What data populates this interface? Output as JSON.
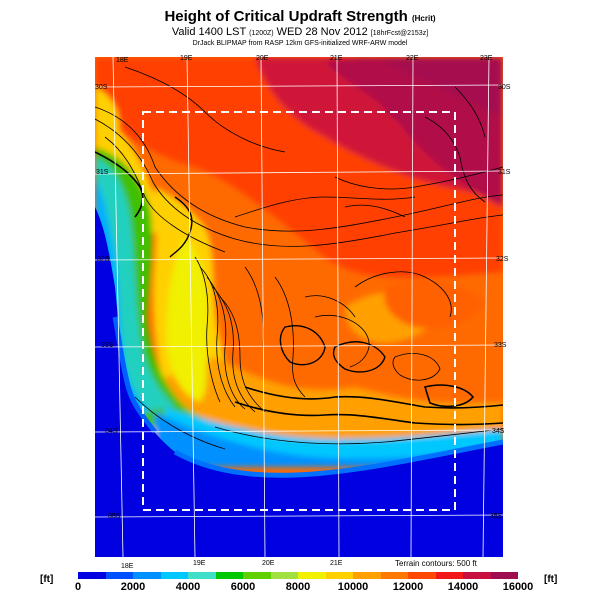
{
  "title": "Height of Critical Updraft Strength",
  "title_units": "(Hcrit)",
  "subtitle_main": "Valid 1400 LST",
  "subtitle_z": "(1200Z)",
  "subtitle_date": "WED 28 Nov 2012",
  "subtitle_model": "[18hrFcst@2153z]",
  "credit": "DrJack BLIPMAP from RASP 12km GFS-initialized WRF-ARW model",
  "terrain_note": "Terrain contours: 500 ft",
  "colorbar": {
    "unit_left": "[ft]",
    "unit_right": "[ft]",
    "ticks": [
      "0",
      "2000",
      "4000",
      "6000",
      "8000",
      "10000",
      "12000",
      "14000",
      "16000"
    ],
    "colors": [
      "#0000e0",
      "#0050ff",
      "#0090ff",
      "#00c8ff",
      "#40e0c8",
      "#00c800",
      "#60d000",
      "#a0e040",
      "#f0f000",
      "#ffd000",
      "#ffa000",
      "#ff7800",
      "#ff4800",
      "#f01818",
      "#c81040",
      "#a00c50"
    ]
  },
  "lon_top": [
    "18E",
    "19E",
    "20E",
    "21E",
    "22E",
    "23E"
  ],
  "lon_bottom": [
    "18E",
    "19E",
    "20E",
    "21E"
  ],
  "lat_right": [
    "30S",
    "31S",
    "32S",
    "33S",
    "34S",
    "35S"
  ],
  "lat_left": [
    "30S",
    "31S",
    "32S",
    "33S",
    "34S",
    "35S"
  ]
}
